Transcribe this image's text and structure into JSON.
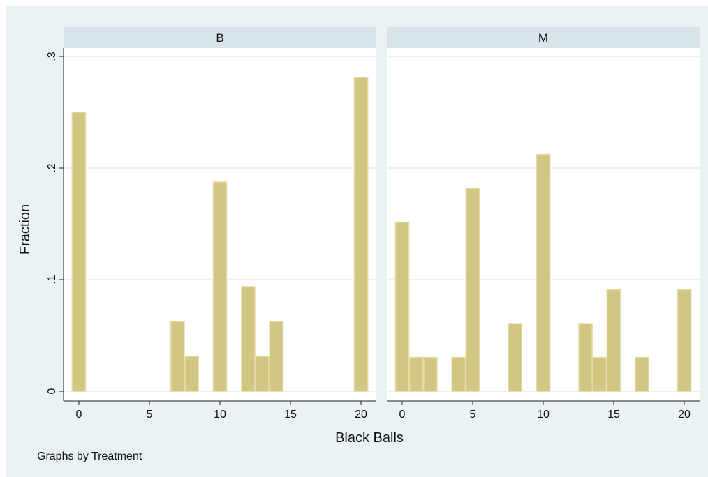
{
  "chart_data": {
    "type": "bar",
    "xlabel": "Black Balls",
    "ylabel": "Fraction",
    "note": "Graphs by Treatment",
    "xlim": [
      -1,
      21
    ],
    "ylim": [
      0,
      0.3
    ],
    "x_ticks": [
      0,
      5,
      10,
      15,
      20
    ],
    "y_ticks": [
      0,
      0.1,
      0.2,
      0.3
    ],
    "y_tick_labels": [
      "0",
      ".1",
      ".2",
      ".3"
    ],
    "bar_color": "#d2c683",
    "bar_edge_color": "#e6dcaa",
    "panel_background": "#ffffff",
    "strip_background": "#d8e4ea",
    "grid": true,
    "panels": [
      {
        "label": "B",
        "x": [
          0,
          7,
          8,
          10,
          12,
          13,
          14,
          20
        ],
        "values": [
          0.25,
          0.0625,
          0.03125,
          0.1875,
          0.09375,
          0.03125,
          0.0625,
          0.28125
        ]
      },
      {
        "label": "M",
        "x": [
          0,
          1,
          2,
          4,
          5,
          8,
          10,
          13,
          14,
          15,
          17,
          20
        ],
        "values": [
          0.1515,
          0.0303,
          0.0303,
          0.0303,
          0.1818,
          0.0606,
          0.2121,
          0.0606,
          0.0303,
          0.0909,
          0.0303,
          0.0909
        ]
      }
    ]
  }
}
